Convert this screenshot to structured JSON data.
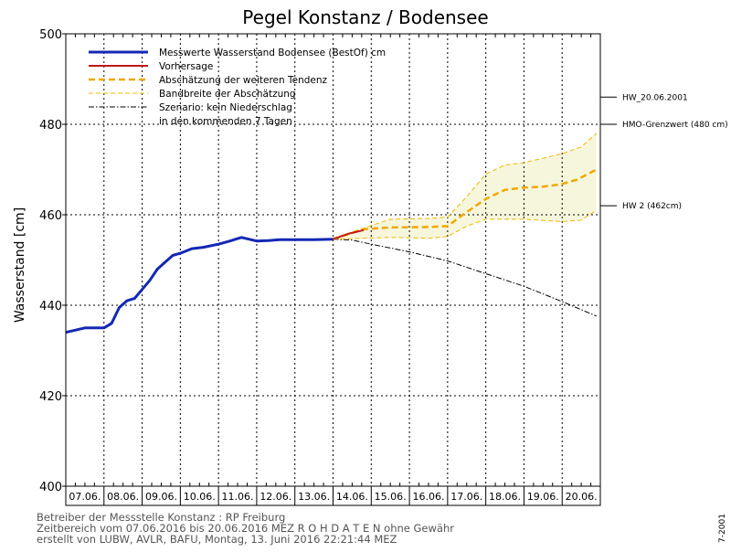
{
  "chart_data": {
    "type": "line",
    "title": "Pegel Konstanz / Bodensee",
    "ylabel": "Wasserstand [cm]",
    "xlabel": "",
    "ylim": [
      400,
      500
    ],
    "yticks": [
      400,
      420,
      440,
      460,
      480,
      500
    ],
    "grid": true,
    "legend_position": "top-left",
    "categories": [
      "07.06.",
      "08.06.",
      "09.06.",
      "10.06.",
      "11.06.",
      "12.06.",
      "13.06.",
      "14.06.",
      "15.06.",
      "16.06.",
      "17.06.",
      "18.06.",
      "19.06.",
      "20.06."
    ],
    "series": [
      {
        "name": "Messwerte Wasserstand Bodensee   (BestOf)  cm",
        "color": "#1428b4",
        "style": "solid-thick",
        "x": [
          0,
          0.5,
          1,
          1.2,
          1.4,
          1.6,
          1.8,
          2,
          2.2,
          2.4,
          2.6,
          2.8,
          3,
          3.3,
          3.6,
          4,
          4.3,
          4.6,
          5,
          5.3,
          5.6,
          6,
          6.5,
          7
        ],
        "y": [
          434,
          435,
          435,
          436,
          439.5,
          441,
          441.5,
          443.5,
          445.5,
          448,
          449.5,
          451,
          451.5,
          452.5,
          452.8,
          453.5,
          454.2,
          455,
          454.2,
          454.3,
          454.5,
          454.5,
          454.5,
          454.6
        ]
      },
      {
        "name": "Vorhersage",
        "color": "#c01818",
        "style": "solid",
        "x": [
          7,
          7.4,
          7.8
        ],
        "y": [
          454.6,
          455.8,
          456.6
        ]
      },
      {
        "name": "Abschätzung der weiteren Tendenz",
        "color": "#f0a800",
        "style": "dashed-thick",
        "x": [
          7,
          7.8,
          8.5,
          9.5,
          10,
          10.4,
          11,
          11.5,
          12,
          12.5,
          13,
          13.4,
          13.9
        ],
        "y": [
          454.6,
          456.8,
          457.2,
          457.3,
          457.5,
          460,
          463.5,
          465.5,
          466,
          466.2,
          466.8,
          467.8,
          470
        ]
      },
      {
        "name": "Bandbreite der Abschätzung",
        "color": "#f0b800",
        "style": "dashed-thin",
        "upper_x": [
          7,
          8.5,
          9.5,
          10,
          10.5,
          11,
          11.5,
          12,
          12.5,
          13,
          13.5,
          13.9
        ],
        "upper_y": [
          454.8,
          459,
          459.2,
          459.5,
          464,
          469,
          471,
          471.5,
          472.5,
          473.5,
          475,
          478
        ],
        "lower_x": [
          7,
          8.5,
          9.5,
          10,
          10.5,
          11,
          12,
          13,
          13.5,
          13.9
        ],
        "lower_y": [
          454.6,
          455,
          454.8,
          455.2,
          457.5,
          459,
          459,
          458.5,
          458.8,
          461
        ]
      },
      {
        "name": "Szenario: kein Niederschlag",
        "name_line2": "in den kommenden 7 Tagen",
        "color": "#000000",
        "style": "dashdot",
        "x": [
          7,
          7.5,
          8,
          9,
          10,
          11,
          12,
          13,
          13.9
        ],
        "y": [
          454.6,
          454.4,
          453.5,
          451.8,
          449.8,
          447,
          444.2,
          440.8,
          437.6
        ]
      }
    ],
    "reference_lines": [
      {
        "label": "HW 2 (462cm)",
        "y": 462
      },
      {
        "label": "HMO-Grenzwert (480 cm)",
        "y": 480
      },
      {
        "label": "HW_20.06.2001",
        "y": 486
      }
    ]
  },
  "footer": {
    "line1": "Betreiber der Messstelle Konstanz : RP Freiburg",
    "line2": "Zeitbereich vom 07.06.2016 bis 20.06.2016    MEZ    R O H D A T E N  ohne Gewähr",
    "line3": "erstellt von LUBW, AVLR, BAFU, Montag, 13. Juni 2016 22:21:44 MEZ",
    "side": "7-2001"
  },
  "colors": {
    "band_fill": "#f6f6dc",
    "grid": "#000000",
    "axis": "#000000"
  }
}
